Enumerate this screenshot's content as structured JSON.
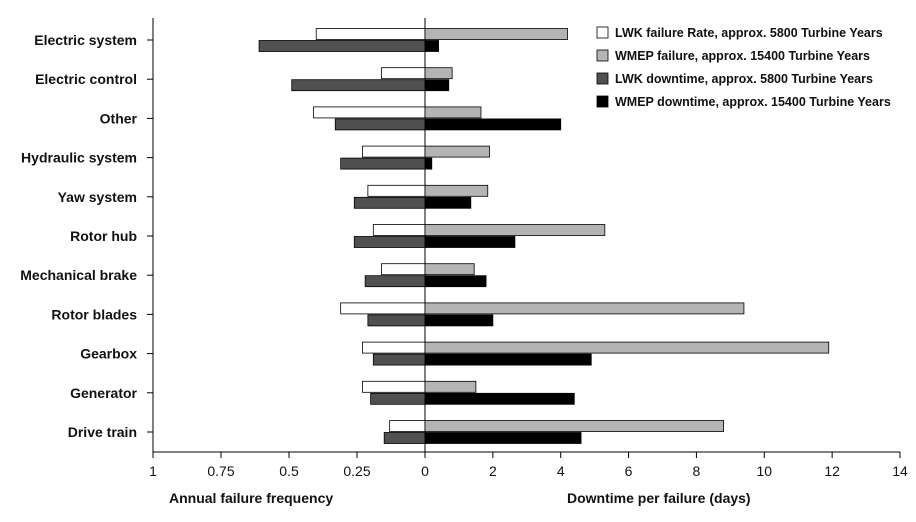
{
  "chart_data": {
    "type": "bar",
    "orientation": "horizontal",
    "categories": [
      "Electric system",
      "Electric control",
      "Other",
      "Hydraulic system",
      "Yaw system",
      "Rotor hub",
      "Mechanical brake",
      "Rotor blades",
      "Gearbox",
      "Generator",
      "Drive train"
    ],
    "xlabel_left": "Annual failure frequency",
    "xlabel_right": "Downtime per failure (days)",
    "left_axis": {
      "range": [
        1,
        0
      ],
      "ticks": [
        "1",
        "0.75",
        "0.5",
        "0.25",
        "0"
      ]
    },
    "right_axis": {
      "range": [
        0,
        14
      ],
      "ticks": [
        "2",
        "4",
        "6",
        "8",
        "10",
        "12",
        "14"
      ]
    },
    "grid": false,
    "legend_position": "top-right",
    "series": [
      {
        "name": "LWK failure Rate, approx. 5800 Turbine Years",
        "side": "left",
        "color": "#ffffff",
        "values": [
          0.4,
          0.16,
          0.41,
          0.23,
          0.21,
          0.19,
          0.16,
          0.31,
          0.23,
          0.23,
          0.13
        ]
      },
      {
        "name": "WMEP failure, approx. 15400 Turbine Years",
        "side": "right",
        "color": "#b4b4b4",
        "values": [
          4.2,
          0.8,
          1.65,
          1.9,
          1.85,
          5.3,
          1.45,
          9.4,
          11.9,
          1.5,
          8.8
        ]
      },
      {
        "name": "LWK downtime, approx. 5800 Turbine Years",
        "side": "left",
        "color": "#505050",
        "values": [
          0.61,
          0.49,
          0.33,
          0.31,
          0.26,
          0.26,
          0.22,
          0.21,
          0.19,
          0.2,
          0.15
        ]
      },
      {
        "name": "WMEP downtime, approx. 15400 Turbine Years",
        "side": "right",
        "color": "#000000",
        "values": [
          0.4,
          0.7,
          4.0,
          0.2,
          1.35,
          2.65,
          1.8,
          2.0,
          4.9,
          4.4,
          4.6
        ]
      }
    ]
  }
}
